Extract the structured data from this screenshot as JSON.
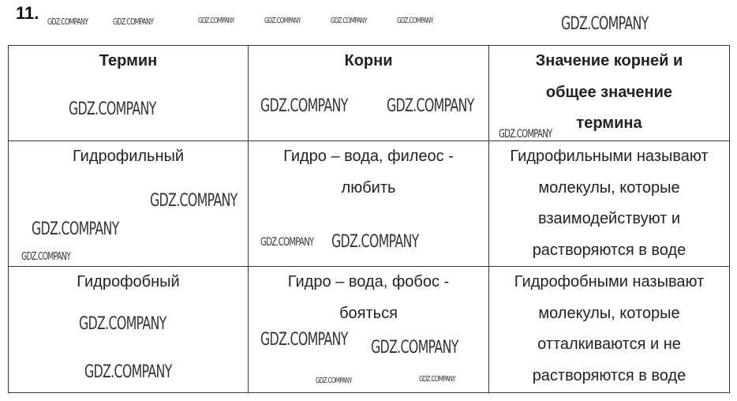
{
  "exercise_number": "11.",
  "table": {
    "headers": [
      "Термин",
      "Корни",
      "Значение корней и общее значение термина"
    ],
    "rows": [
      [
        "Гидрофильный",
        "Гидро – вода, филеос - любить",
        "Гидрофильными называют молекулы, которые взаимодействуют и растворяются в воде"
      ],
      [
        "Гидрофобный",
        "Гидро – вода, фобос - бояться",
        "Гидрофобными называют молекулы, которые отталкиваются и не растворяются в воде"
      ]
    ]
  },
  "watermark": "GDZ.COMPANY"
}
